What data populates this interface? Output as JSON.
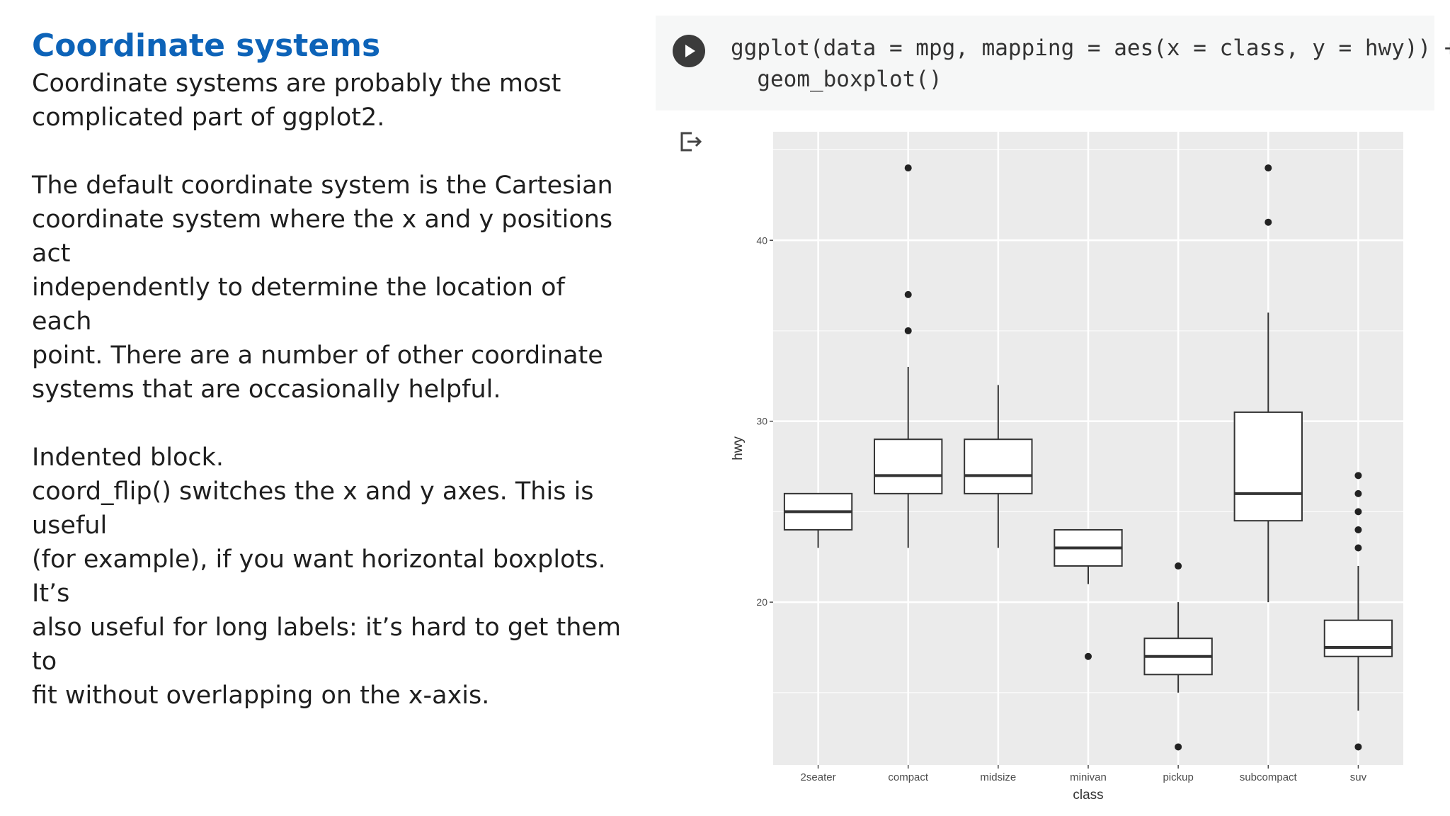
{
  "slide": {
    "title": "Coordinate systems",
    "paragraphs": [
      [
        "Coordinate systems are probably the most",
        "complicated part of ggplot2."
      ],
      [
        "The default coordinate system is the Cartesian",
        "coordinate system where the x and y positions act",
        "independently to determine the location of each",
        "point. There are a number of other coordinate",
        "systems that are occasionally helpful."
      ],
      [
        "Indented block.",
        "coord_flip() switches the x and y axes. This is useful",
        "(for example), if you want horizontal boxplots. It’s",
        "also useful for long labels: it’s hard to get them to",
        "fit without overlapping on the x-axis."
      ]
    ]
  },
  "code_cell": {
    "lines": [
      "ggplot(data = mpg, mapping = aes(x = class, y = hwy)) +",
      "  geom_boxplot()"
    ],
    "run_icon": "play-circle-icon",
    "output_icon": "output-arrow-icon"
  },
  "colors": {
    "title": "#0d63b8",
    "panel_bg": "#ebebeb",
    "grid": "#ffffff",
    "box_fill": "#ffffff",
    "box_stroke": "#333333",
    "axis_text": "#4d4d4d"
  },
  "chart_data": {
    "type": "boxplot",
    "xlabel": "class",
    "ylabel": "hwy",
    "ylim": [
      11,
      46
    ],
    "yticks": [
      20,
      30,
      40
    ],
    "grid": true,
    "categories": [
      "2seater",
      "compact",
      "midsize",
      "minivan",
      "pickup",
      "subcompact",
      "suv"
    ],
    "boxes": [
      {
        "category": "2seater",
        "lower_whisker": 23,
        "q1": 24,
        "median": 25,
        "q3": 26,
        "upper_whisker": 26,
        "outliers": []
      },
      {
        "category": "compact",
        "lower_whisker": 23,
        "q1": 26,
        "median": 27,
        "q3": 29,
        "upper_whisker": 33,
        "outliers": [
          35,
          37,
          44
        ]
      },
      {
        "category": "midsize",
        "lower_whisker": 23,
        "q1": 26,
        "median": 27,
        "q3": 29,
        "upper_whisker": 32,
        "outliers": []
      },
      {
        "category": "minivan",
        "lower_whisker": 21,
        "q1": 22,
        "median": 23,
        "q3": 24,
        "upper_whisker": 24,
        "outliers": [
          17
        ]
      },
      {
        "category": "pickup",
        "lower_whisker": 15,
        "q1": 16,
        "median": 17,
        "q3": 18,
        "upper_whisker": 20,
        "outliers": [
          12,
          22
        ]
      },
      {
        "category": "subcompact",
        "lower_whisker": 20,
        "q1": 24.5,
        "median": 26,
        "q3": 30.5,
        "upper_whisker": 36,
        "outliers": [
          41,
          44
        ]
      },
      {
        "category": "suv",
        "lower_whisker": 14,
        "q1": 17,
        "median": 17.5,
        "q3": 19,
        "upper_whisker": 22,
        "outliers": [
          12,
          23,
          24,
          25,
          26,
          27
        ]
      }
    ]
  }
}
